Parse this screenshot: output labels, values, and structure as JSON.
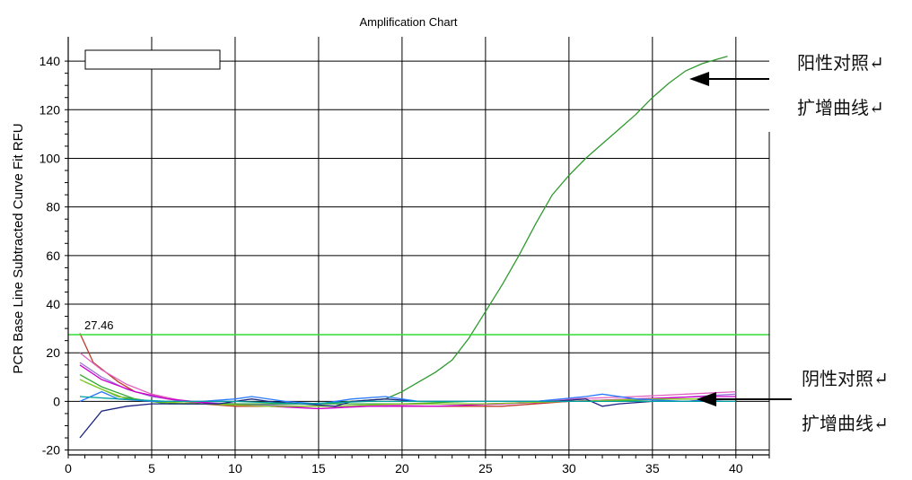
{
  "chart_data": {
    "type": "line",
    "title": "Amplification Chart",
    "xlabel": "",
    "ylabel": "PCR Base Line Subtracted Curve Fit RFU",
    "xlim": [
      0,
      42
    ],
    "ylim": [
      -22,
      150
    ],
    "x_ticks": [
      0,
      5,
      10,
      15,
      20,
      25,
      30,
      35,
      40
    ],
    "y_ticks": [
      -20,
      0,
      20,
      40,
      60,
      80,
      100,
      120,
      140
    ],
    "grid": true,
    "threshold": {
      "value": 27.46,
      "label": "27.46",
      "color": "#33dd33"
    },
    "legend_box": true,
    "series": [
      {
        "color": "#2e9a2e",
        "points": [
          [
            1,
            8
          ],
          [
            3,
            2
          ],
          [
            5,
            0
          ],
          [
            7,
            -1
          ],
          [
            9,
            -1
          ],
          [
            11,
            -1
          ],
          [
            13,
            -1
          ],
          [
            15,
            -1
          ],
          [
            17,
            0
          ],
          [
            19,
            1
          ],
          [
            20,
            4
          ],
          [
            21,
            8
          ],
          [
            22,
            12
          ],
          [
            23,
            17
          ],
          [
            24,
            26
          ],
          [
            25,
            37
          ],
          [
            26,
            48
          ],
          [
            27,
            60
          ],
          [
            28,
            73
          ],
          [
            29,
            85
          ],
          [
            30,
            93
          ],
          [
            31,
            100
          ],
          [
            32,
            106
          ],
          [
            33,
            112
          ],
          [
            34,
            118
          ],
          [
            35,
            125
          ],
          [
            36,
            131
          ],
          [
            37,
            136
          ],
          [
            38,
            139
          ],
          [
            39,
            141
          ],
          [
            39.5,
            142
          ]
        ]
      },
      {
        "color": "#c0392b",
        "points": [
          [
            0.7,
            28
          ],
          [
            1.5,
            16
          ],
          [
            3,
            8
          ],
          [
            4,
            4
          ],
          [
            6,
            1
          ],
          [
            8,
            -1
          ],
          [
            10,
            -2
          ],
          [
            14,
            -2
          ],
          [
            18,
            -2
          ],
          [
            22,
            -2
          ],
          [
            26,
            -2
          ],
          [
            30,
            0
          ],
          [
            34,
            1
          ],
          [
            38,
            1
          ],
          [
            40,
            1
          ]
        ]
      },
      {
        "color": "#e060c0",
        "points": [
          [
            0.7,
            20
          ],
          [
            2,
            13
          ],
          [
            3.5,
            7
          ],
          [
            5,
            3
          ],
          [
            7,
            0
          ],
          [
            9,
            -1
          ],
          [
            13,
            -2
          ],
          [
            15,
            -3
          ],
          [
            17,
            -2
          ],
          [
            22,
            -1
          ],
          [
            26,
            -1
          ],
          [
            30,
            1
          ],
          [
            34,
            2
          ],
          [
            37,
            3
          ],
          [
            40,
            4
          ]
        ]
      },
      {
        "color": "#9a70d8",
        "points": [
          [
            0.7,
            16
          ],
          [
            2,
            10
          ],
          [
            3.5,
            5
          ],
          [
            5,
            2
          ],
          [
            7,
            0
          ],
          [
            10,
            -1
          ],
          [
            14,
            -2
          ],
          [
            16,
            -2
          ],
          [
            20,
            -1
          ],
          [
            25,
            -1
          ],
          [
            30,
            0
          ],
          [
            35,
            1
          ],
          [
            40,
            3
          ]
        ]
      },
      {
        "color": "#cc00cc",
        "points": [
          [
            0.7,
            15
          ],
          [
            2,
            9
          ],
          [
            4,
            4
          ],
          [
            6,
            1
          ],
          [
            9,
            -1
          ],
          [
            12,
            -2
          ],
          [
            15,
            -3
          ],
          [
            18,
            -2
          ],
          [
            22,
            -2
          ],
          [
            26,
            -1
          ],
          [
            30,
            0
          ],
          [
            34,
            1
          ],
          [
            38,
            2
          ],
          [
            40,
            2
          ]
        ]
      },
      {
        "color": "#33aa33",
        "points": [
          [
            0.7,
            11
          ],
          [
            2,
            6
          ],
          [
            4,
            1
          ],
          [
            6,
            -1
          ],
          [
            8,
            -1
          ],
          [
            12,
            -1
          ],
          [
            16,
            -1
          ],
          [
            20,
            -1
          ],
          [
            24,
            0
          ],
          [
            28,
            0
          ],
          [
            32,
            0
          ],
          [
            36,
            1
          ],
          [
            40,
            1
          ]
        ]
      },
      {
        "color": "#88cc22",
        "points": [
          [
            0.7,
            9
          ],
          [
            2,
            5
          ],
          [
            3.5,
            1
          ],
          [
            5,
            0
          ],
          [
            8,
            -1
          ],
          [
            12,
            -2
          ],
          [
            16,
            -2
          ],
          [
            20,
            -1
          ],
          [
            25,
            -1
          ],
          [
            30,
            0
          ],
          [
            35,
            1
          ],
          [
            40,
            1
          ]
        ]
      },
      {
        "color": "#1a237e",
        "points": [
          [
            0.7,
            -15
          ],
          [
            2,
            -4
          ],
          [
            3.5,
            -2
          ],
          [
            5,
            -1
          ],
          [
            7,
            -1
          ],
          [
            9,
            -1
          ],
          [
            11,
            1
          ],
          [
            12,
            0
          ],
          [
            14,
            -1
          ],
          [
            16,
            -2
          ],
          [
            17,
            0
          ],
          [
            19,
            1
          ],
          [
            21,
            0
          ],
          [
            25,
            0
          ],
          [
            29,
            0
          ],
          [
            31,
            1
          ],
          [
            32,
            -2
          ],
          [
            33,
            -1
          ],
          [
            35,
            0
          ],
          [
            37,
            0
          ],
          [
            39,
            1
          ],
          [
            40,
            1
          ]
        ]
      },
      {
        "color": "#2979ff",
        "points": [
          [
            0.7,
            0
          ],
          [
            2,
            4
          ],
          [
            3,
            1
          ],
          [
            5,
            0
          ],
          [
            8,
            0
          ],
          [
            10,
            1
          ],
          [
            11,
            2
          ],
          [
            13,
            0
          ],
          [
            15,
            -1
          ],
          [
            17,
            1
          ],
          [
            19,
            2
          ],
          [
            21,
            0
          ],
          [
            24,
            0
          ],
          [
            28,
            0
          ],
          [
            31,
            2
          ],
          [
            32,
            3
          ],
          [
            34,
            1
          ],
          [
            37,
            0
          ],
          [
            40,
            1
          ]
        ]
      },
      {
        "color": "#00a0a0",
        "points": [
          [
            0.7,
            2
          ],
          [
            3,
            1
          ],
          [
            6,
            0
          ],
          [
            10,
            0
          ],
          [
            14,
            -1
          ],
          [
            18,
            0
          ],
          [
            22,
            0
          ],
          [
            26,
            0
          ],
          [
            30,
            0
          ],
          [
            34,
            0
          ],
          [
            38,
            0
          ],
          [
            40,
            0
          ]
        ]
      }
    ]
  },
  "annotations": {
    "positive_line1": "阳性对照↵",
    "positive_line2": "扩增曲线↵",
    "negative_line1": "阴性对照↵",
    "negative_line2": "扩增曲线↵"
  }
}
